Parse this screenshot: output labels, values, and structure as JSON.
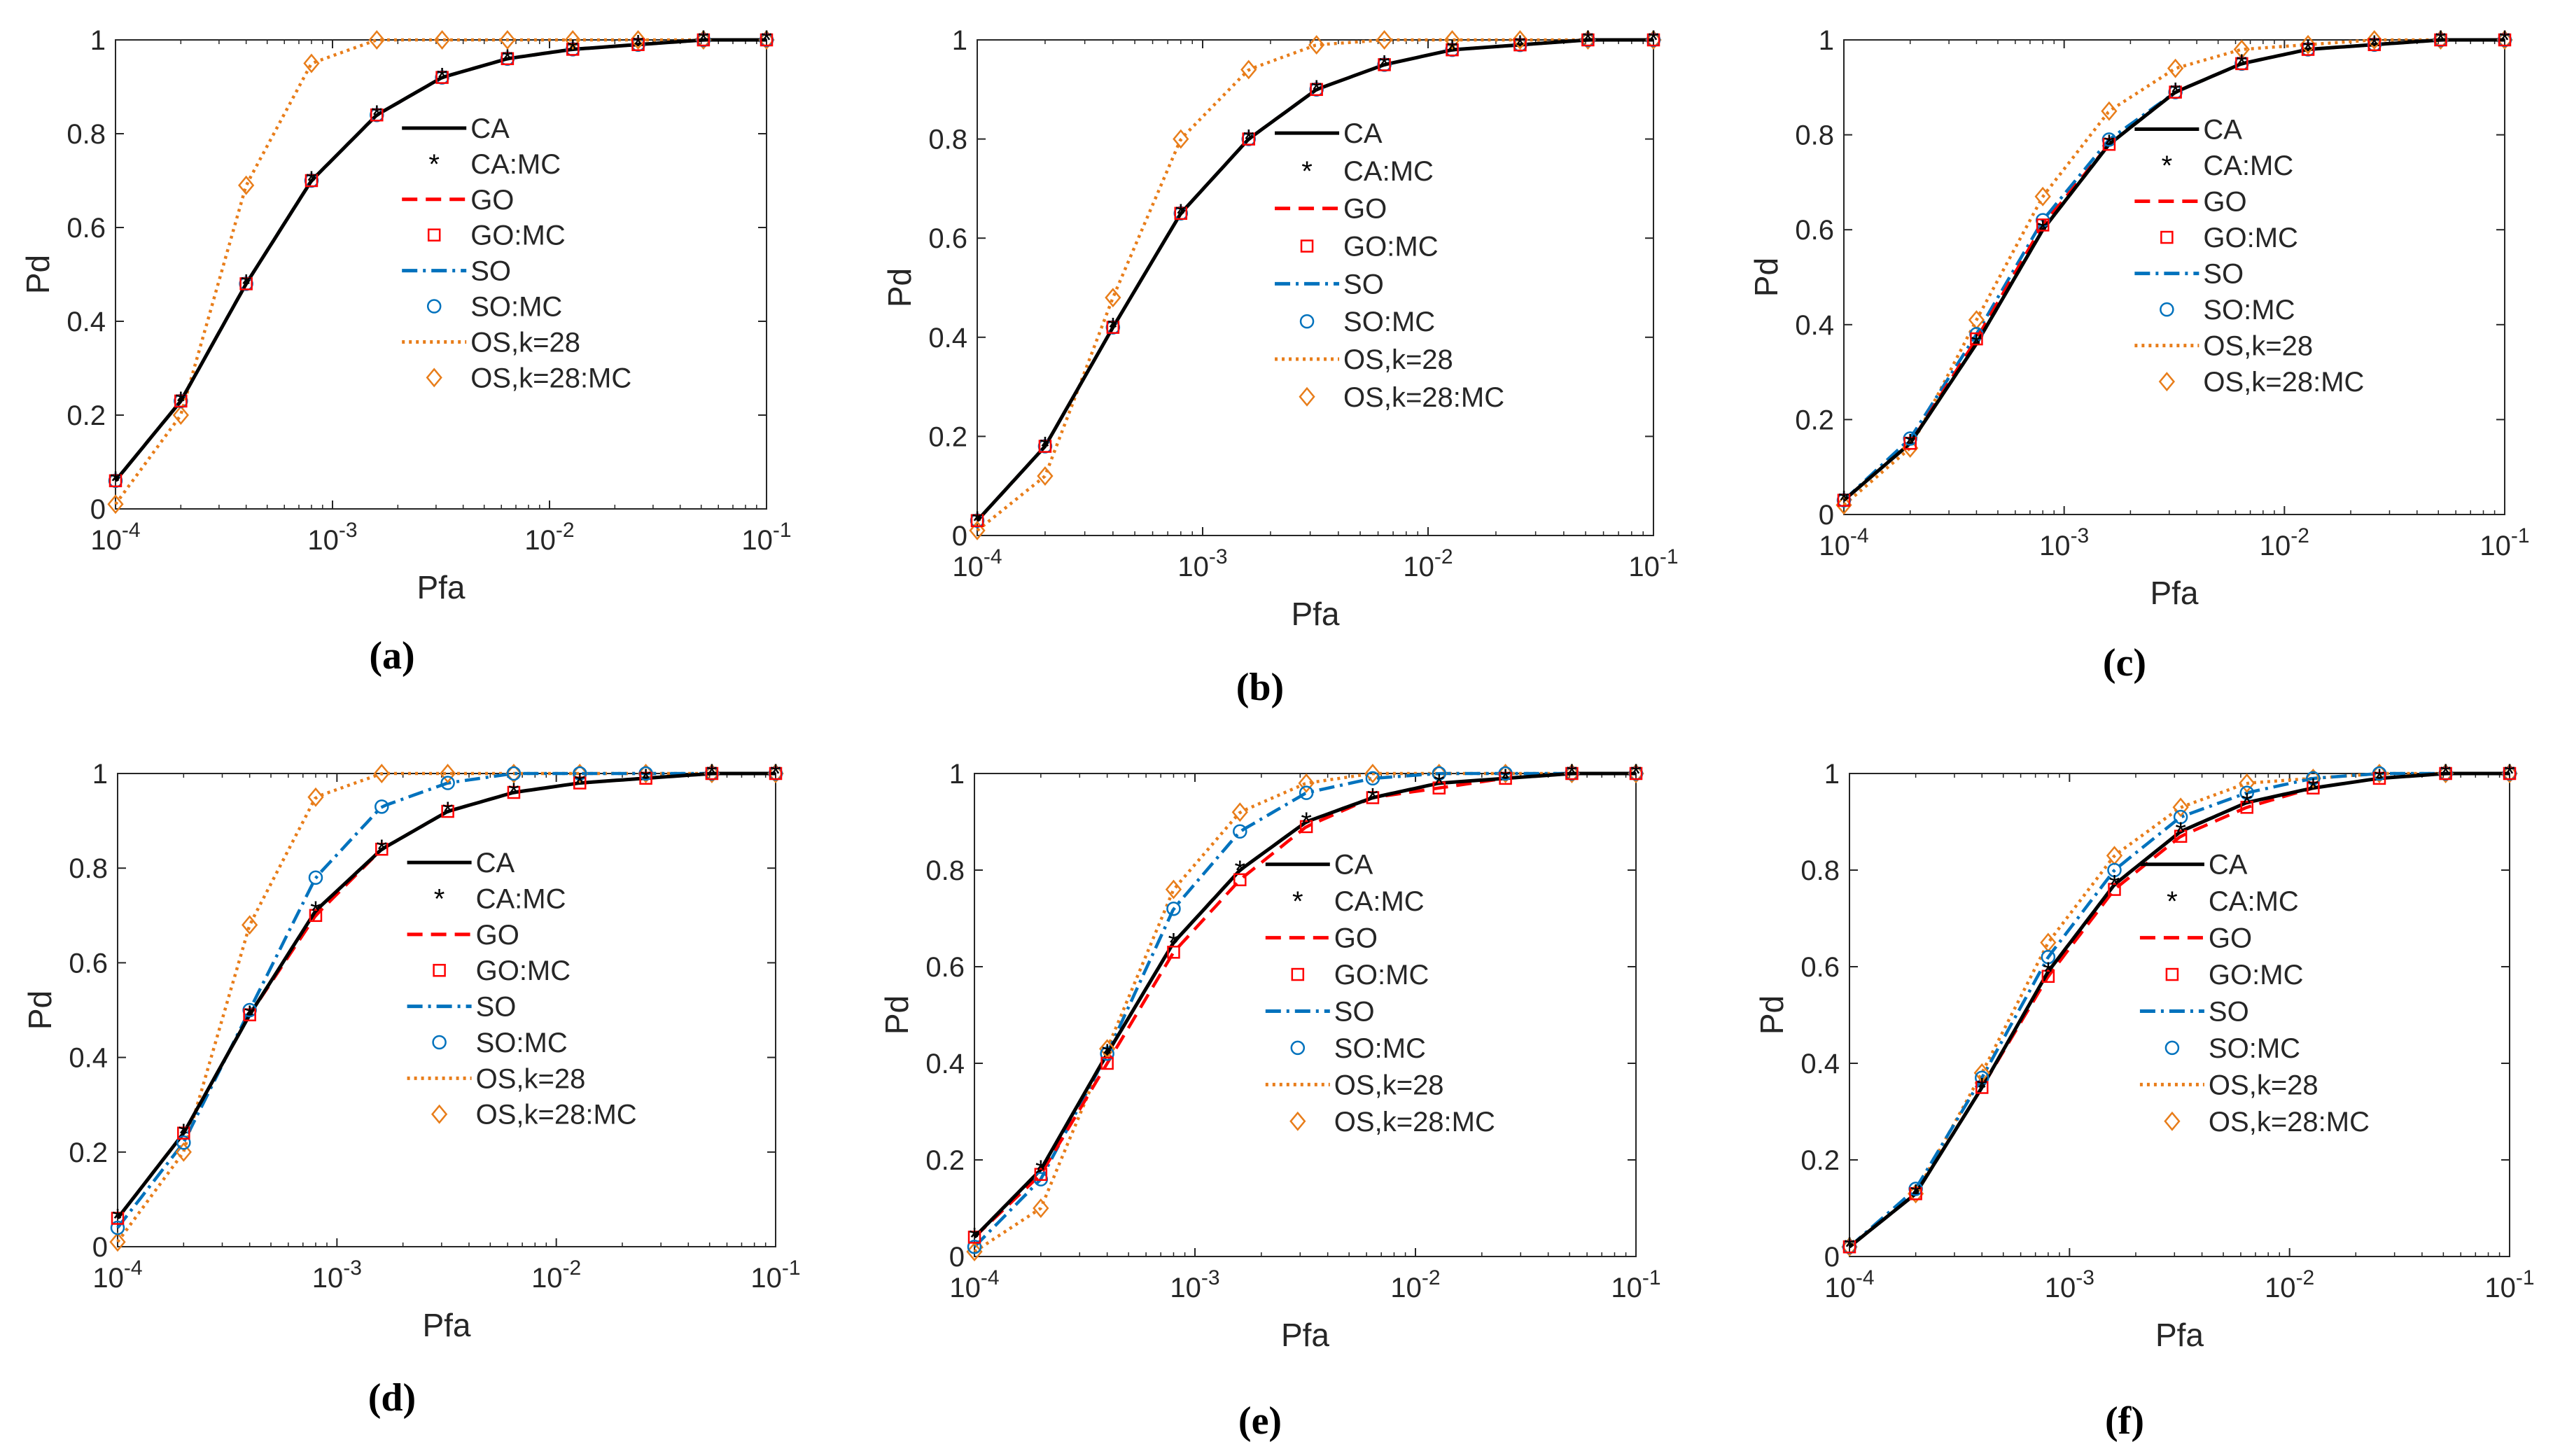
{
  "figure": {
    "panels": [
      {
        "id": "a",
        "caption": "(a)"
      },
      {
        "id": "b",
        "caption": "(b)"
      },
      {
        "id": "c",
        "caption": "(c)"
      },
      {
        "id": "d",
        "caption": "(d)"
      },
      {
        "id": "e",
        "caption": "(e)"
      },
      {
        "id": "f",
        "caption": "(f)"
      }
    ]
  },
  "series_styles": [
    {
      "key": "CA",
      "color": "#000000",
      "dash": "solid",
      "marker": "none"
    },
    {
      "key": "CA:MC",
      "color": "#000000",
      "dash": "none",
      "marker": "star"
    },
    {
      "key": "GO",
      "color": "#ff0000",
      "dash": "dashed",
      "marker": "none"
    },
    {
      "key": "GO:MC",
      "color": "#ff0000",
      "dash": "none",
      "marker": "square"
    },
    {
      "key": "SO",
      "color": "#0072bd",
      "dash": "dashdot",
      "marker": "none"
    },
    {
      "key": "SO:MC",
      "color": "#0072bd",
      "dash": "none",
      "marker": "circle"
    },
    {
      "key": "OS,k=28",
      "color": "#e87d1a",
      "dash": "dotted",
      "marker": "none"
    },
    {
      "key": "OS,k=28:MC",
      "color": "#e87d1a",
      "dash": "none",
      "marker": "diamond"
    }
  ],
  "chart_data": [
    {
      "type": "line",
      "panel": "a",
      "title": "",
      "xlabel": "Pfa",
      "ylabel": "Pd",
      "xscale": "log",
      "xlim": [
        0.0001,
        0.1
      ],
      "ylim": [
        0,
        1
      ],
      "xticks": [
        "10^-4",
        "10^-3",
        "10^-2",
        "10^-1"
      ],
      "yticks": [
        "0",
        "0.2",
        "0.4",
        "0.6",
        "0.8",
        "1"
      ],
      "legend": [
        "CA",
        "CA:MC",
        "GO",
        "GO:MC",
        "SO",
        "SO:MC",
        "OS,k=28",
        "OS,k=28:MC"
      ],
      "legend_position": "center-right",
      "x": [
        0.0001,
        0.0002,
        0.0004,
        0.0008,
        0.0016,
        0.0032,
        0.0064,
        0.0128,
        0.0256,
        0.0512,
        0.1
      ],
      "series": [
        {
          "name": "CA",
          "values": [
            0.06,
            0.23,
            0.48,
            0.7,
            0.84,
            0.92,
            0.96,
            0.98,
            0.99,
            1.0,
            1.0
          ]
        },
        {
          "name": "GO",
          "values": [
            0.06,
            0.23,
            0.48,
            0.7,
            0.84,
            0.92,
            0.96,
            0.98,
            0.99,
            1.0,
            1.0
          ]
        },
        {
          "name": "SO",
          "values": [
            0.06,
            0.23,
            0.48,
            0.7,
            0.84,
            0.92,
            0.96,
            0.98,
            0.99,
            1.0,
            1.0
          ]
        },
        {
          "name": "OS,k=28",
          "values": [
            0.01,
            0.2,
            0.69,
            0.95,
            1.0,
            1.0,
            1.0,
            1.0,
            1.0,
            1.0,
            1.0
          ]
        }
      ]
    },
    {
      "type": "line",
      "panel": "b",
      "title": "",
      "xlabel": "Pfa",
      "ylabel": "Pd",
      "xscale": "log",
      "xlim": [
        0.0001,
        0.1
      ],
      "ylim": [
        0,
        1
      ],
      "xticks": [
        "10^-4",
        "10^-3",
        "10^-2",
        "10^-1"
      ],
      "yticks": [
        "0",
        "0.2",
        "0.4",
        "0.6",
        "0.8",
        "1"
      ],
      "legend": [
        "CA",
        "CA:MC",
        "GO",
        "GO:MC",
        "SO",
        "SO:MC",
        "OS,k=28",
        "OS,k=28:MC"
      ],
      "legend_position": "center-right",
      "x": [
        0.0001,
        0.0002,
        0.0004,
        0.0008,
        0.0016,
        0.0032,
        0.0064,
        0.0128,
        0.0256,
        0.0512,
        0.1
      ],
      "series": [
        {
          "name": "CA",
          "values": [
            0.03,
            0.18,
            0.42,
            0.65,
            0.8,
            0.9,
            0.95,
            0.98,
            0.99,
            1.0,
            1.0
          ]
        },
        {
          "name": "GO",
          "values": [
            0.03,
            0.18,
            0.42,
            0.65,
            0.8,
            0.9,
            0.95,
            0.98,
            0.99,
            1.0,
            1.0
          ]
        },
        {
          "name": "SO",
          "values": [
            0.03,
            0.18,
            0.42,
            0.65,
            0.8,
            0.9,
            0.95,
            0.98,
            0.99,
            1.0,
            1.0
          ]
        },
        {
          "name": "OS,k=28",
          "values": [
            0.01,
            0.12,
            0.48,
            0.8,
            0.94,
            0.99,
            1.0,
            1.0,
            1.0,
            1.0,
            1.0
          ]
        }
      ]
    },
    {
      "type": "line",
      "panel": "c",
      "title": "",
      "xlabel": "Pfa",
      "ylabel": "Pd",
      "xscale": "log",
      "xlim": [
        0.0001,
        0.1
      ],
      "ylim": [
        0,
        1
      ],
      "xticks": [
        "10^-4",
        "10^-3",
        "10^-2",
        "10^-1"
      ],
      "yticks": [
        "0",
        "0.2",
        "0.4",
        "0.6",
        "0.8",
        "1"
      ],
      "legend": [
        "CA",
        "CA:MC",
        "GO",
        "GO:MC",
        "SO",
        "SO:MC",
        "OS,k=28",
        "OS,k=28:MC"
      ],
      "legend_position": "center-right",
      "x": [
        0.0001,
        0.0002,
        0.0004,
        0.0008,
        0.0016,
        0.0032,
        0.0064,
        0.0128,
        0.0256,
        0.0512,
        0.1
      ],
      "series": [
        {
          "name": "CA",
          "values": [
            0.03,
            0.15,
            0.36,
            0.6,
            0.78,
            0.89,
            0.95,
            0.98,
            0.99,
            1.0,
            1.0
          ]
        },
        {
          "name": "GO",
          "values": [
            0.03,
            0.15,
            0.37,
            0.61,
            0.78,
            0.89,
            0.95,
            0.98,
            0.99,
            1.0,
            1.0
          ]
        },
        {
          "name": "SO",
          "values": [
            0.03,
            0.16,
            0.38,
            0.62,
            0.79,
            0.89,
            0.95,
            0.98,
            0.99,
            1.0,
            1.0
          ]
        },
        {
          "name": "OS,k=28",
          "values": [
            0.02,
            0.14,
            0.41,
            0.67,
            0.85,
            0.94,
            0.98,
            0.99,
            1.0,
            1.0,
            1.0
          ]
        }
      ]
    },
    {
      "type": "line",
      "panel": "d",
      "title": "",
      "xlabel": "Pfa",
      "ylabel": "Pd",
      "xscale": "log",
      "xlim": [
        0.0001,
        0.1
      ],
      "ylim": [
        0,
        1
      ],
      "xticks": [
        "10^-4",
        "10^-3",
        "10^-2",
        "10^-1"
      ],
      "yticks": [
        "0",
        "0.2",
        "0.4",
        "0.6",
        "0.8",
        "1"
      ],
      "legend": [
        "CA",
        "CA:MC",
        "GO",
        "GO:MC",
        "SO",
        "SO:MC",
        "OS,k=28",
        "OS,k=28:MC"
      ],
      "legend_position": "center-right",
      "x": [
        0.0001,
        0.0002,
        0.0004,
        0.0008,
        0.0016,
        0.0032,
        0.0064,
        0.0128,
        0.0256,
        0.0512,
        0.1
      ],
      "series": [
        {
          "name": "CA",
          "values": [
            0.06,
            0.24,
            0.49,
            0.71,
            0.84,
            0.92,
            0.96,
            0.98,
            0.99,
            1.0,
            1.0
          ]
        },
        {
          "name": "GO",
          "values": [
            0.06,
            0.24,
            0.49,
            0.7,
            0.84,
            0.92,
            0.96,
            0.98,
            0.99,
            1.0,
            1.0
          ]
        },
        {
          "name": "SO",
          "values": [
            0.04,
            0.22,
            0.5,
            0.78,
            0.93,
            0.98,
            1.0,
            1.0,
            1.0,
            1.0,
            1.0
          ]
        },
        {
          "name": "OS,k=28",
          "values": [
            0.01,
            0.2,
            0.68,
            0.95,
            1.0,
            1.0,
            1.0,
            1.0,
            1.0,
            1.0,
            1.0
          ]
        }
      ]
    },
    {
      "type": "line",
      "panel": "e",
      "title": "",
      "xlabel": "Pfa",
      "ylabel": "Pd",
      "xscale": "log",
      "xlim": [
        0.0001,
        0.1
      ],
      "ylim": [
        0,
        1
      ],
      "xticks": [
        "10^-4",
        "10^-3",
        "10^-2",
        "10^-1"
      ],
      "yticks": [
        "0",
        "0.2",
        "0.4",
        "0.6",
        "0.8",
        "1"
      ],
      "legend": [
        "CA",
        "CA:MC",
        "GO",
        "GO:MC",
        "SO",
        "SO:MC",
        "OS,k=28",
        "OS,k=28:MC"
      ],
      "legend_position": "center-right",
      "x": [
        0.0001,
        0.0002,
        0.0004,
        0.0008,
        0.0016,
        0.0032,
        0.0064,
        0.0128,
        0.0256,
        0.0512,
        0.1
      ],
      "series": [
        {
          "name": "CA",
          "values": [
            0.04,
            0.18,
            0.42,
            0.65,
            0.8,
            0.9,
            0.95,
            0.98,
            0.99,
            1.0,
            1.0
          ]
        },
        {
          "name": "GO",
          "values": [
            0.04,
            0.17,
            0.4,
            0.63,
            0.78,
            0.89,
            0.95,
            0.97,
            0.99,
            1.0,
            1.0
          ]
        },
        {
          "name": "SO",
          "values": [
            0.02,
            0.16,
            0.42,
            0.72,
            0.88,
            0.96,
            0.99,
            1.0,
            1.0,
            1.0,
            1.0
          ]
        },
        {
          "name": "OS,k=28",
          "values": [
            0.01,
            0.1,
            0.43,
            0.76,
            0.92,
            0.98,
            1.0,
            1.0,
            1.0,
            1.0,
            1.0
          ]
        }
      ]
    },
    {
      "type": "line",
      "panel": "f",
      "title": "",
      "xlabel": "Pfa",
      "ylabel": "Pd",
      "xscale": "log",
      "xlim": [
        0.0001,
        0.1
      ],
      "ylim": [
        0,
        1
      ],
      "xticks": [
        "10^-4",
        "10^-3",
        "10^-2",
        "10^-1"
      ],
      "yticks": [
        "0",
        "0.2",
        "0.4",
        "0.6",
        "0.8",
        "1"
      ],
      "legend": [
        "CA",
        "CA:MC",
        "GO",
        "GO:MC",
        "SO",
        "SO:MC",
        "OS,k=28",
        "OS,k=28:MC"
      ],
      "legend_position": "center-right",
      "x": [
        0.0001,
        0.0002,
        0.0004,
        0.0008,
        0.0016,
        0.0032,
        0.0064,
        0.0128,
        0.0256,
        0.0512,
        0.1
      ],
      "series": [
        {
          "name": "CA",
          "values": [
            0.02,
            0.13,
            0.35,
            0.59,
            0.77,
            0.88,
            0.94,
            0.97,
            0.99,
            1.0,
            1.0
          ]
        },
        {
          "name": "GO",
          "values": [
            0.02,
            0.13,
            0.35,
            0.58,
            0.76,
            0.87,
            0.93,
            0.97,
            0.99,
            1.0,
            1.0
          ]
        },
        {
          "name": "SO",
          "values": [
            0.02,
            0.14,
            0.37,
            0.62,
            0.8,
            0.91,
            0.96,
            0.99,
            1.0,
            1.0,
            1.0
          ]
        },
        {
          "name": "OS,k=28",
          "values": [
            0.02,
            0.13,
            0.38,
            0.65,
            0.83,
            0.93,
            0.98,
            0.99,
            1.0,
            1.0,
            1.0
          ]
        }
      ]
    }
  ]
}
